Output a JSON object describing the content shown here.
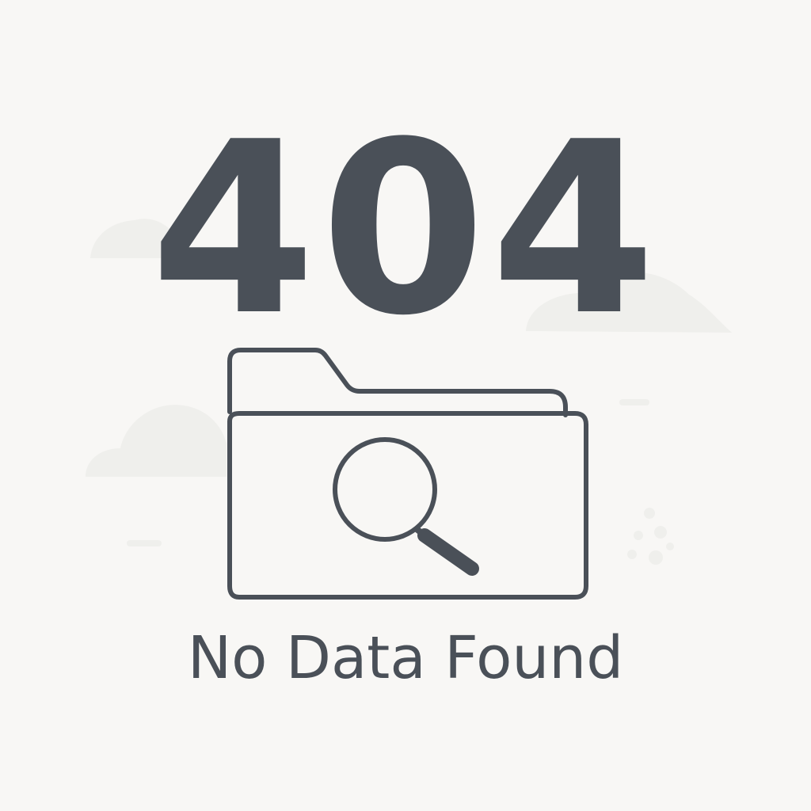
{
  "error": {
    "code": "404",
    "message": "No Data Found"
  },
  "illustration": {
    "icon": "folder-search-icon"
  },
  "colors": {
    "background": "#f8f7f5",
    "foreground": "#4a5058",
    "decor": "#efefec"
  }
}
